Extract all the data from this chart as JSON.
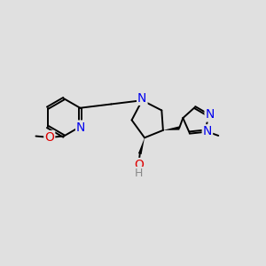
{
  "background_color": "#e0e0e0",
  "bond_color": "#000000",
  "atom_colors": {
    "N": "#0000ee",
    "O": "#dd0000",
    "C": "#000000",
    "H": "#888888"
  },
  "font_size": 10,
  "title": ""
}
